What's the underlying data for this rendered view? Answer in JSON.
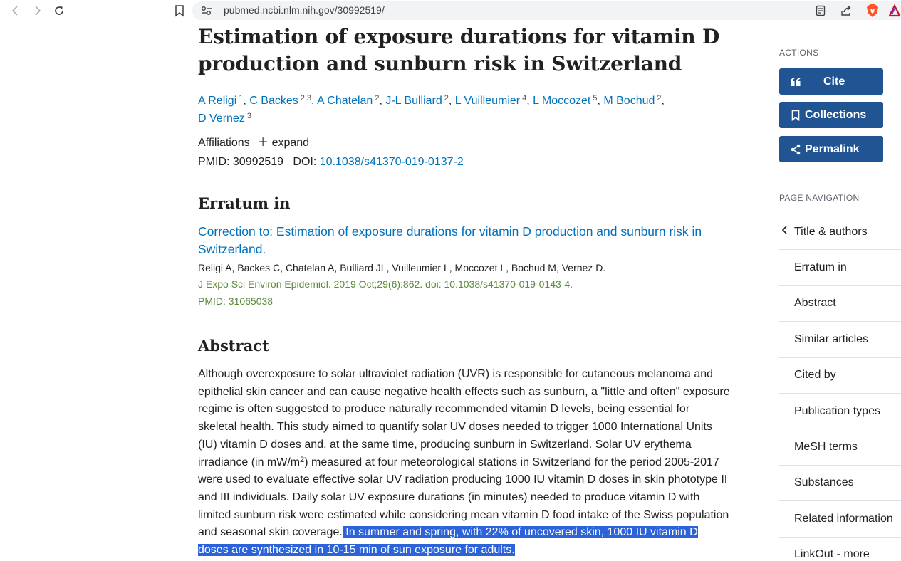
{
  "browser": {
    "url": "pubmed.ncbi.nlm.nih.gov/30992519/",
    "icons": [
      "back-icon",
      "forward-icon",
      "reload-icon",
      "bookmark-icon",
      "site-settings-icon",
      "reader-mode-icon",
      "share-icon",
      "brave-shield-icon",
      "brave-rewards-icon"
    ]
  },
  "article": {
    "title": "Estimation of exposure durations for vitamin D production and sunburn risk in Switzerland",
    "authors": [
      {
        "name": "A Religi",
        "aff": "1"
      },
      {
        "name": "C Backes",
        "aff": "2 3"
      },
      {
        "name": "A Chatelan",
        "aff": "2"
      },
      {
        "name": "J-L Bulliard",
        "aff": "2"
      },
      {
        "name": "L Vuilleumier",
        "aff": "4"
      },
      {
        "name": "L Moccozet",
        "aff": "5"
      },
      {
        "name": "M Bochud",
        "aff": "2"
      },
      {
        "name": "D Vernez",
        "aff": "3"
      }
    ],
    "affiliations_label": "Affiliations",
    "expand_label": "expand",
    "pmid_label": "PMID: 30992519",
    "doi_label": "DOI:",
    "doi": "10.1038/s41370-019-0137-2"
  },
  "erratum": {
    "heading": "Erratum in",
    "link": "Correction to: Estimation of exposure durations for vitamin D production and sunburn risk in Switzerland.",
    "authors": "Religi A, Backes C, Chatelan A, Bulliard JL, Vuilleumier L, Moccozet L, Bochud M, Vernez D.",
    "citation": "J Expo Sci Environ Epidemiol. 2019 Oct;29(6):862. doi: 10.1038/s41370-019-0143-4.",
    "pmid": "PMID: 31065038"
  },
  "abstract": {
    "heading": "Abstract",
    "text_a": "Although overexposure to solar ultraviolet radiation (UVR) is responsible for cutaneous melanoma and epithelial skin cancer and can cause negative health effects such as sunburn, a \"little and often\" exposure regime is often suggested to produce naturally recommended vitamin D levels, being essential for skeletal health. This study aimed to quantify solar UV doses needed to trigger 1000 International Units (IU) vitamin D doses and, at the same time, producing sunburn in Switzerland. Solar UV erythema irradiance (in mW/m",
    "sup": "2",
    "text_b": ") measured at four meteorological stations in Switzerland for the period 2005-2017 were used to evaluate effective solar UV radiation producing 1000 IU vitamin D doses in skin phototype II and III individuals. Daily solar UV exposure durations (in minutes) needed to produce vitamin D with limited sunburn risk were estimated while considering mean vitamin D food intake of the Swiss population and seasonal skin coverage.",
    "highlighted": " In summer and spring, with 22% of uncovered skin, 1000 IU vitamin D doses are synthesized in 10-15 min of sun exposure for adults."
  },
  "sidebar": {
    "actions_label": "ACTIONS",
    "cite": "Cite",
    "collections": "Collections",
    "permalink": "Permalink",
    "nav_label": "PAGE NAVIGATION",
    "nav_items": [
      "Title & authors",
      "Erratum in",
      "Abstract",
      "Similar articles",
      "Cited by",
      "Publication types",
      "MeSH terms",
      "Substances",
      "Related information",
      "LinkOut - more"
    ]
  },
  "colors": {
    "link": "#0071bc",
    "button": "#205493",
    "highlight": "#2c63d8",
    "citation_green": "#5b8a3a"
  }
}
